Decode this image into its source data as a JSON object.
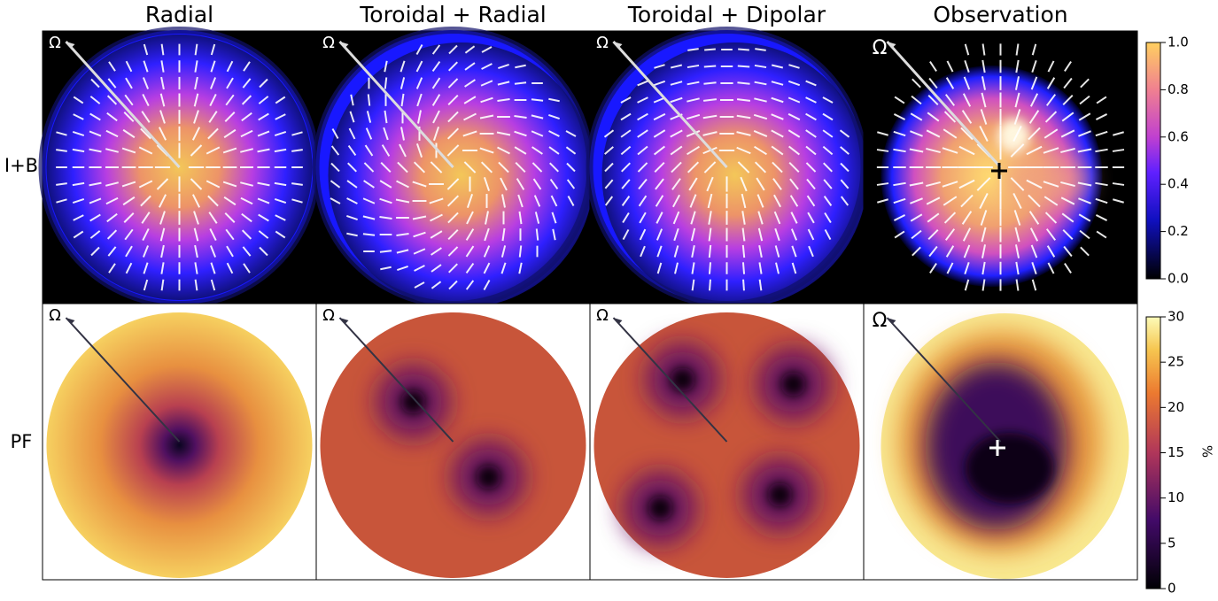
{
  "columns": [
    "Radial",
    "Toroidal + Radial",
    "Toroidal + Dipolar",
    "Observation"
  ],
  "rows": [
    "I+B",
    "PF"
  ],
  "omega": "Ω",
  "colorbars": [
    {
      "ticks": [
        "1.0",
        "0.8",
        "0.6",
        "0.4",
        "0.2",
        "0.0"
      ]
    },
    {
      "ticks": [
        "30",
        "25",
        "20",
        "15",
        "10",
        "5",
        "0"
      ],
      "label": "%"
    }
  ]
}
